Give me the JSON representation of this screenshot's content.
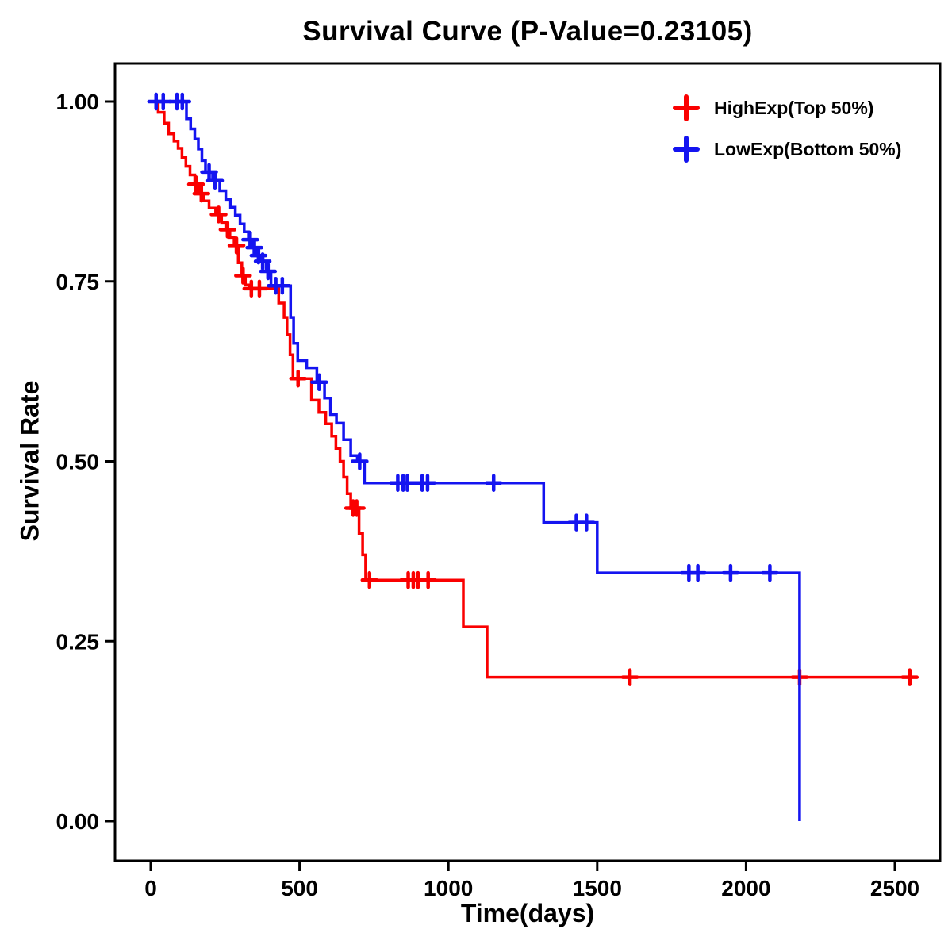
{
  "chart_data": {
    "type": "line",
    "subtype": "kaplan-meier-step",
    "title": "Survival Curve (P-Value=0.23105)",
    "p_value": "0.23105",
    "xlabel": "Time(days)",
    "ylabel": "Survival Rate",
    "xlim": [
      0,
      2650
    ],
    "ylim": [
      0,
      1
    ],
    "grid": false,
    "legend_position": "top-right",
    "x_ticks": [
      0,
      500,
      1000,
      1500,
      2000,
      2500
    ],
    "y_tick_values": [
      0,
      0.25,
      0.5,
      0.75,
      1
    ],
    "y_tick_labels": [
      "0.00",
      "0.25",
      "0.50",
      "0.75",
      "1.00"
    ],
    "series": [
      {
        "name": "HighExp(Top 50%)",
        "color": "#FA0000",
        "end": 2560,
        "steps": [
          [
            0,
            1.0
          ],
          [
            25,
            0.985
          ],
          [
            45,
            0.97
          ],
          [
            60,
            0.955
          ],
          [
            78,
            0.945
          ],
          [
            92,
            0.935
          ],
          [
            105,
            0.922
          ],
          [
            118,
            0.91
          ],
          [
            132,
            0.898
          ],
          [
            148,
            0.885
          ],
          [
            162,
            0.872
          ],
          [
            178,
            0.862
          ],
          [
            196,
            0.852
          ],
          [
            218,
            0.843
          ],
          [
            238,
            0.832
          ],
          [
            252,
            0.822
          ],
          [
            266,
            0.811
          ],
          [
            280,
            0.8
          ],
          [
            294,
            0.776
          ],
          [
            306,
            0.758
          ],
          [
            318,
            0.745
          ],
          [
            330,
            0.74
          ],
          [
            430,
            0.72
          ],
          [
            448,
            0.7
          ],
          [
            458,
            0.676
          ],
          [
            468,
            0.648
          ],
          [
            478,
            0.615
          ],
          [
            540,
            0.585
          ],
          [
            565,
            0.568
          ],
          [
            588,
            0.552
          ],
          [
            608,
            0.535
          ],
          [
            622,
            0.518
          ],
          [
            636,
            0.5
          ],
          [
            648,
            0.478
          ],
          [
            660,
            0.455
          ],
          [
            672,
            0.435
          ],
          [
            700,
            0.4
          ],
          [
            712,
            0.37
          ],
          [
            722,
            0.335
          ],
          [
            1050,
            0.27
          ],
          [
            1130,
            0.2
          ]
        ],
        "censors": [
          [
            152,
            0.885
          ],
          [
            170,
            0.872
          ],
          [
            228,
            0.843
          ],
          [
            258,
            0.822
          ],
          [
            288,
            0.8
          ],
          [
            310,
            0.758
          ],
          [
            338,
            0.74
          ],
          [
            365,
            0.74
          ],
          [
            495,
            0.615
          ],
          [
            680,
            0.435
          ],
          [
            692,
            0.435
          ],
          [
            735,
            0.335
          ],
          [
            865,
            0.335
          ],
          [
            882,
            0.335
          ],
          [
            898,
            0.335
          ],
          [
            932,
            0.335
          ],
          [
            1610,
            0.2
          ],
          [
            2180,
            0.2
          ],
          [
            2550,
            0.2
          ]
        ]
      },
      {
        "name": "LowExp(Bottom 50%)",
        "color": "#1414F0",
        "end": 2180,
        "steps": [
          [
            0,
            1.0
          ],
          [
            120,
            0.976
          ],
          [
            134,
            0.962
          ],
          [
            148,
            0.948
          ],
          [
            160,
            0.934
          ],
          [
            172,
            0.918
          ],
          [
            184,
            0.902
          ],
          [
            208,
            0.89
          ],
          [
            232,
            0.876
          ],
          [
            252,
            0.864
          ],
          [
            268,
            0.853
          ],
          [
            284,
            0.842
          ],
          [
            300,
            0.83
          ],
          [
            314,
            0.819
          ],
          [
            328,
            0.808
          ],
          [
            342,
            0.797
          ],
          [
            356,
            0.786
          ],
          [
            370,
            0.778
          ],
          [
            388,
            0.764
          ],
          [
            404,
            0.744
          ],
          [
            470,
            0.7
          ],
          [
            480,
            0.664
          ],
          [
            494,
            0.64
          ],
          [
            524,
            0.63
          ],
          [
            558,
            0.61
          ],
          [
            584,
            0.588
          ],
          [
            604,
            0.565
          ],
          [
            624,
            0.553
          ],
          [
            648,
            0.53
          ],
          [
            672,
            0.508
          ],
          [
            694,
            0.5
          ],
          [
            718,
            0.47
          ],
          [
            1320,
            0.415
          ],
          [
            1500,
            0.345
          ],
          [
            2180,
            0.0
          ]
        ],
        "censors": [
          [
            18,
            1.0
          ],
          [
            42,
            1.0
          ],
          [
            88,
            1.0
          ],
          [
            106,
            1.0
          ],
          [
            196,
            0.902
          ],
          [
            216,
            0.89
          ],
          [
            334,
            0.808
          ],
          [
            348,
            0.797
          ],
          [
            362,
            0.786
          ],
          [
            376,
            0.778
          ],
          [
            394,
            0.764
          ],
          [
            420,
            0.744
          ],
          [
            442,
            0.744
          ],
          [
            566,
            0.61
          ],
          [
            702,
            0.5
          ],
          [
            830,
            0.47
          ],
          [
            848,
            0.47
          ],
          [
            862,
            0.47
          ],
          [
            912,
            0.47
          ],
          [
            930,
            0.47
          ],
          [
            1152,
            0.47
          ],
          [
            1430,
            0.415
          ],
          [
            1464,
            0.415
          ],
          [
            1808,
            0.345
          ],
          [
            1838,
            0.345
          ],
          [
            1948,
            0.345
          ],
          [
            2080,
            0.345
          ]
        ]
      }
    ]
  }
}
